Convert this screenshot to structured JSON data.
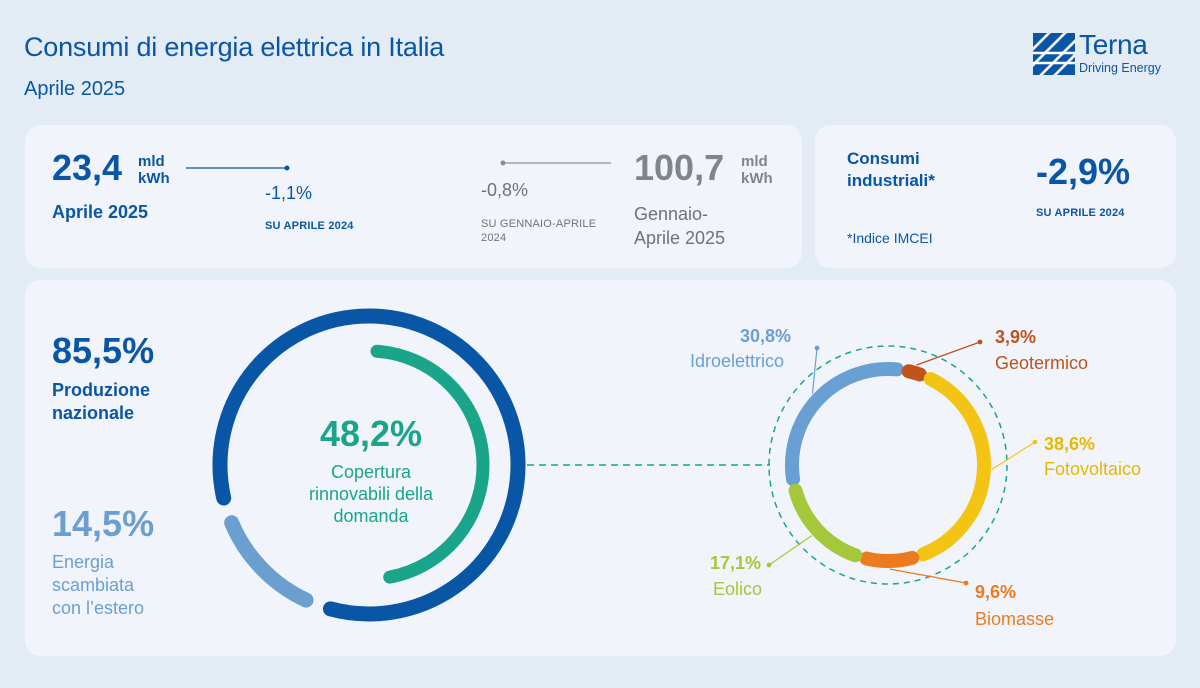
{
  "header": {
    "title": "Consumi di energia elettrica in Italia",
    "subtitle": "Aprile 2025"
  },
  "logo": {
    "name": "Terna",
    "tagline": "Driving Energy"
  },
  "stats": {
    "april": {
      "value": "23,4",
      "unit_line1": "mld",
      "unit_line2": "kWh",
      "label": "Aprile 2025",
      "change": "-1,1%",
      "change_note": "SU APRILE 2024"
    },
    "ytd": {
      "value": "100,7",
      "unit_line1": "mld",
      "unit_line2": "kWh",
      "label_line1": "Gennaio-",
      "label_line2": "Aprile 2025",
      "change": "-0,8%",
      "change_note_line1": "SU GENNAIO-APRILE",
      "change_note_line2": "2024"
    }
  },
  "industrial": {
    "label_line1": "Consumi",
    "label_line2": "industriali*",
    "value": "-2,9%",
    "change_note": "SU APRILE 2024",
    "footnote": "*Indice IMCEI"
  },
  "colors": {
    "primary": "#0a56a6",
    "light_blue": "#6b9fd0",
    "green": "#1aa58a",
    "hydro": "#6a9fd3",
    "geo": "#c0521b",
    "solar": "#f4c414",
    "biomass": "#ec7b20",
    "wind": "#a5c73a"
  },
  "chart_data": [
    {
      "type": "pie",
      "variant": "donut",
      "values": [
        85.5,
        14.5
      ],
      "labels": [
        "Produzione nazionale",
        "Energia scambiata con l’estero"
      ],
      "display_values": [
        "85,5%",
        "14,5%"
      ],
      "legend": {
        "national_pct": "85,5%",
        "national_line1": "Produzione",
        "national_line2": "nazionale",
        "foreign_pct": "14,5%",
        "foreign_line1": "Energia",
        "foreign_line2": "scambiata",
        "foreign_line3": "con l’estero"
      },
      "inner_arc": {
        "value": 48.2,
        "display_value": "48,2%",
        "label_line1": "Copertura",
        "label_line2": "rinnovabili della",
        "label_line3": "domanda"
      }
    },
    {
      "type": "pie",
      "variant": "donut",
      "values": [
        30.8,
        3.9,
        38.6,
        9.6,
        17.1
      ],
      "labels": [
        "Idroelettrico",
        "Geotermico",
        "Fotovoltaico",
        "Biomasse",
        "Eolico"
      ],
      "display_values": [
        "30,8%",
        "3,9%",
        "38,6%",
        "9,6%",
        "17,1%"
      ],
      "slices": [
        {
          "pct": "30,8%",
          "name": "Idroelettrico",
          "color": "#6a9fd3"
        },
        {
          "pct": "3,9%",
          "name": "Geotermico",
          "color": "#c0521b"
        },
        {
          "pct": "38,6%",
          "name": "Fotovoltaico",
          "color": "#f4c414"
        },
        {
          "pct": "9,6%",
          "name": "Biomasse",
          "color": "#ec7b20"
        },
        {
          "pct": "17,1%",
          "name": "Eolico",
          "color": "#a5c73a"
        }
      ]
    }
  ]
}
